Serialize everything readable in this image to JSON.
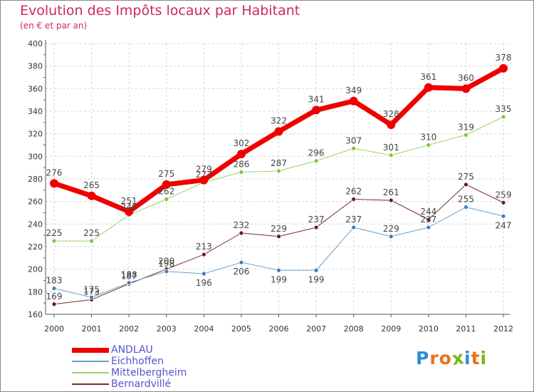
{
  "title": "Evolution des Impôts locaux par Habitant",
  "subtitle": "(en € et par an)",
  "logo": {
    "letters": [
      "P",
      "r",
      "o",
      "x",
      "i",
      "t",
      "i"
    ],
    "colors": [
      "#2a8fd6",
      "#e8731c",
      "#e8731c",
      "#7ab51d",
      "#2a8fd6",
      "#e8731c",
      "#7ab51d"
    ]
  },
  "chart_data": {
    "type": "line",
    "x": [
      "2000",
      "2001",
      "2002",
      "2003",
      "2004",
      "2005",
      "2006",
      "2007",
      "2008",
      "2009",
      "2010",
      "2011",
      "2012"
    ],
    "ylim": [
      160,
      400
    ],
    "yticks": [
      "160",
      "180",
      "200",
      "220",
      "240",
      "260",
      "280",
      "300",
      "320",
      "340",
      "360",
      "380",
      "400"
    ],
    "grid": true,
    "legend_position": "bottom-left",
    "series": [
      {
        "name": "Bernardvillé",
        "color": "#7a2a2a",
        "width": 1,
        "marker_fill": "#6b1a1a",
        "labels_above": [
          true,
          true,
          true,
          true,
          true,
          true,
          true,
          true,
          true,
          true,
          true,
          true,
          true
        ],
        "values": [
          169,
          173,
          187,
          200,
          213,
          232,
          229,
          237,
          262,
          261,
          244,
          275,
          259
        ]
      },
      {
        "name": "Eichhoffen",
        "color": "#6aa0cf",
        "width": 1,
        "marker_fill": "#3a7fc0",
        "labels_above": [
          true,
          true,
          true,
          true,
          false,
          false,
          false,
          false,
          true,
          true,
          true,
          true,
          false
        ],
        "values": [
          183,
          175,
          188,
          198,
          196,
          206,
          199,
          199,
          237,
          229,
          237,
          255,
          247
        ]
      },
      {
        "name": "Mittelbergheim",
        "color": "#9bd36a",
        "width": 1,
        "marker_fill": "#80c540",
        "labels_above": [
          true,
          true,
          true,
          true,
          true,
          true,
          true,
          true,
          true,
          true,
          true,
          true,
          true
        ],
        "values": [
          225,
          225,
          248,
          262,
          277,
          286,
          287,
          296,
          307,
          301,
          310,
          319,
          335
        ]
      },
      {
        "name": "ANDLAU",
        "color": "#ee0000",
        "width": 7,
        "marker_fill": "#ee0000",
        "labels_above": [
          true,
          true,
          true,
          true,
          true,
          true,
          true,
          true,
          true,
          true,
          true,
          true,
          true
        ],
        "values": [
          276,
          265,
          251,
          275,
          279,
          302,
          322,
          341,
          349,
          328,
          361,
          360,
          378
        ]
      }
    ],
    "legend_order": [
      "ANDLAU",
      "Eichhoffen",
      "Mittelbergheim",
      "Bernardvillé"
    ]
  }
}
